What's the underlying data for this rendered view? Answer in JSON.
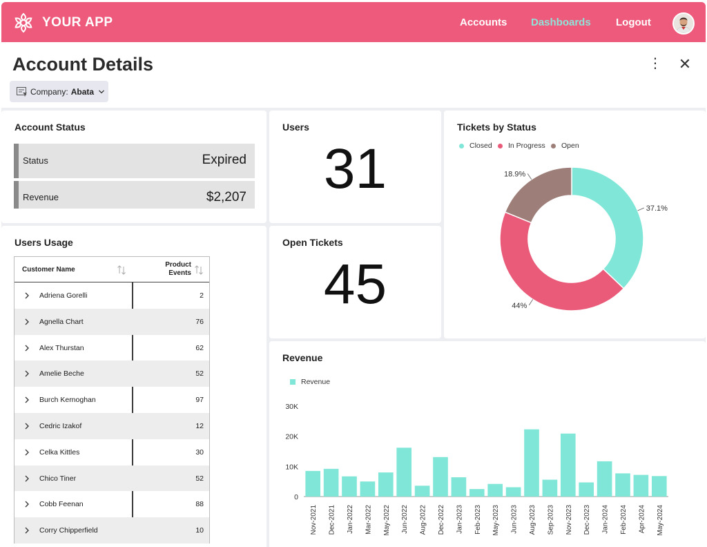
{
  "app": {
    "name": "YOUR APP"
  },
  "nav": {
    "accounts": "Accounts",
    "dashboards": "Dashboards",
    "logout": "Logout"
  },
  "header": {
    "title": "Account Details",
    "filter_label": "Company:",
    "filter_value": "Abata",
    "more_symbol": "⋮",
    "close_symbol": "✕"
  },
  "account_status": {
    "title": "Account Status",
    "rows": [
      {
        "label": "Status",
        "value": "Expired"
      },
      {
        "label": "Revenue",
        "value": "$2,207"
      }
    ]
  },
  "users": {
    "title": "Users",
    "value": "31"
  },
  "open_tickets": {
    "title": "Open Tickets",
    "value": "45"
  },
  "users_usage": {
    "title": "Users Usage",
    "col1": "Customer Name",
    "col2_line1": "Product",
    "col2_line2": "Events",
    "rows": [
      {
        "name": "Adriena Gorelli",
        "events": "2"
      },
      {
        "name": "Agnella Chart",
        "events": "76"
      },
      {
        "name": "Alex Thurstan",
        "events": "62"
      },
      {
        "name": "Amelie Beche",
        "events": "52"
      },
      {
        "name": "Burch Kernoghan",
        "events": "97"
      },
      {
        "name": "Cedric Izakof",
        "events": "12"
      },
      {
        "name": "Celka Kittles",
        "events": "30"
      },
      {
        "name": "Chico Tiner",
        "events": "52"
      },
      {
        "name": "Cobb Feenan",
        "events": "88"
      },
      {
        "name": "Corry Chipperfield",
        "events": "10"
      }
    ]
  },
  "colors": {
    "brand": "#ee5a7b",
    "teal": "#80e6d7",
    "pink": "#ea5a79",
    "brown": "#9e7e78",
    "active_nav": "#8fe3d8"
  },
  "chart_data": [
    {
      "type": "pie",
      "title": "Tickets by Status",
      "categories": [
        "Closed",
        "In Progress",
        "Open"
      ],
      "values": [
        37.1,
        44,
        18.9
      ],
      "labels": [
        "37.1%",
        "44%",
        "18.9%"
      ],
      "colors": [
        "#80e6d7",
        "#ea5a79",
        "#9e7e78"
      ],
      "legend": "top-left"
    },
    {
      "type": "bar",
      "title": "Revenue",
      "legend": "top-left",
      "categories": [
        "Nov-2021",
        "Dec-2021",
        "Jan-2022",
        "Mar-2022",
        "May-2022",
        "Jun-2022",
        "Aug-2022",
        "Dec-2022",
        "Jan-2023",
        "Feb-2023",
        "May-2023",
        "Jun-2023",
        "Aug-2023",
        "Sep-2023",
        "Nov-2023",
        "Dec-2023",
        "Jan-2024",
        "Feb-2024",
        "Apr-2024",
        "May-2024"
      ],
      "series": [
        {
          "name": "Revenue",
          "values": [
            8500,
            9200,
            6700,
            5000,
            8000,
            16200,
            3600,
            13100,
            6400,
            2500,
            4200,
            3100,
            22300,
            5600,
            20900,
            4700,
            11700,
            7700,
            7200,
            6800
          ]
        }
      ],
      "ylim": [
        0,
        30000
      ],
      "yticks": [
        "0",
        "10K",
        "20K",
        "30K"
      ],
      "grid": false
    }
  ]
}
